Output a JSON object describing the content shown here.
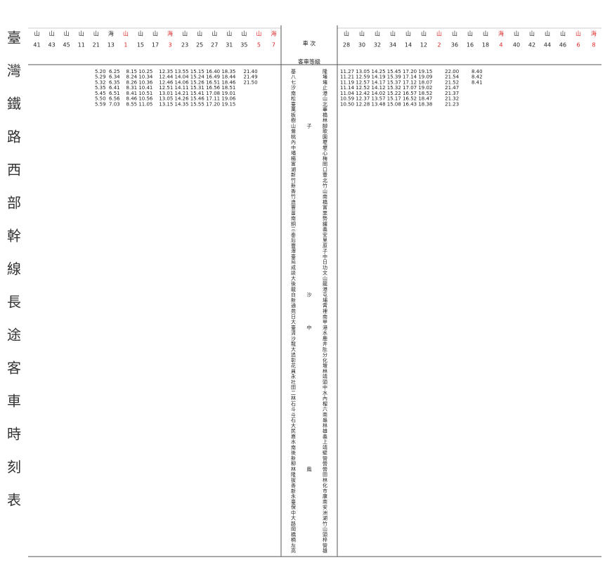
{
  "title": "臺灣鐵路西部幹線長途客車時刻表",
  "header": {
    "train_label": "車 次",
    "class_label": "客車等級",
    "left_trains": [
      {
        "no": "41",
        "line": "山"
      },
      {
        "no": "43",
        "line": "山"
      },
      {
        "no": "45",
        "line": "山"
      },
      {
        "no": "11",
        "line": "山"
      },
      {
        "no": "21",
        "line": "山"
      },
      {
        "no": "13",
        "line": "海"
      },
      {
        "no": "1",
        "line": "山",
        "red": true
      },
      {
        "no": "15",
        "line": "山"
      },
      {
        "no": "17",
        "line": "山"
      },
      {
        "no": "3",
        "line": "海",
        "red": true
      },
      {
        "no": "23",
        "line": "山"
      },
      {
        "no": "25",
        "line": "山"
      },
      {
        "no": "27",
        "line": "山"
      },
      {
        "no": "31",
        "line": "山"
      },
      {
        "no": "35",
        "line": "山"
      },
      {
        "no": "5",
        "line": "山",
        "red": true
      },
      {
        "no": "7",
        "line": "海",
        "red": true
      }
    ],
    "right_trains": [
      {
        "no": "28",
        "line": "山"
      },
      {
        "no": "30",
        "line": "山"
      },
      {
        "no": "32",
        "line": "山"
      },
      {
        "no": "34",
        "line": "山"
      },
      {
        "no": "14",
        "line": "山"
      },
      {
        "no": "12",
        "line": "山"
      },
      {
        "no": "2",
        "line": "山",
        "red": true
      },
      {
        "no": "36",
        "line": "山"
      },
      {
        "no": "16",
        "line": "山"
      },
      {
        "no": "18",
        "line": "山"
      },
      {
        "no": "4",
        "line": "海",
        "red": true
      },
      {
        "no": "40",
        "line": "山"
      },
      {
        "no": "42",
        "line": "山"
      },
      {
        "no": "44",
        "line": "山"
      },
      {
        "no": "46",
        "line": "山"
      },
      {
        "no": "6",
        "line": "山",
        "red": true
      },
      {
        "no": "8",
        "line": "海",
        "red": true
      }
    ]
  },
  "rows": [
    {
      "station": "基隆",
      "left": "5.20  6.25    8.15 10.25    12.35 13.55 15.15 16.40 18.35     21.40",
      "right": "11.27 13.05 14.25 15.45 17.20 19.15        22.00        8.40"
    },
    {
      "station": "八堵",
      "left": "5.29  6.34    8.24 10.34    12.44 14.04 15.24 16.49 18.44     21.49",
      "right": "11.21 12.59 14.19 15.39 17.14 19.09        21.54        8.42"
    },
    {
      "station": "七堵",
      "left": "5.32  6.35    8.26 10.36    12.46 14.06 15.26 16.51 18.46     21.50",
      "right": "11.19 12.57 14.17 15.37 17.12 18.07        21.52        8.41"
    },
    {
      "station": "汐止",
      "left": "5.35  6.41    8.31 10.41    12.51 14.11 15.31 16.56 18.51",
      "right": "11.14 12.52 14.12 15.32 17.07 19.02        21.47"
    },
    {
      "station": "南港",
      "left": "5.45  6.51    8.41 10.51    13.01 14.21 15.41 17.08 19.01",
      "right": "11.04 12.42 14.02 15.22 16.57 18.52        21.37"
    },
    {
      "station": "松山",
      "left": "5.50  6.56    8.46 10.56    13.05 14.26 15.46 17.11 19.06",
      "right": "10.59 12.37 13.57 15.17 16.52 18.47        21.32"
    },
    {
      "station": "臺北",
      "left": "5.59  7.03    8.55 11.05    13.15 14.35 15.55 17.20 19.15",
      "right": "10.50 12.28 13.48 15.08 16.43 18.38        21.23"
    },
    {
      "station": "萬華"
    },
    {
      "station": "板橋"
    },
    {
      "station": "樹林"
    },
    {
      "station": "山子腳"
    },
    {
      "station": "鶯歌"
    },
    {
      "station": "桃園"
    },
    {
      "station": "內壢"
    },
    {
      "station": "中壢"
    },
    {
      "station": "埔心"
    },
    {
      "station": "楊梅"
    },
    {
      "station": "富岡"
    },
    {
      "station": "湖口"
    },
    {
      "station": "新豐"
    },
    {
      "station": "竹北"
    },
    {
      "station": "新竹"
    },
    {
      "station": "香山"
    },
    {
      "station": "竹南"
    },
    {
      "station": "造橋"
    },
    {
      "station": "豐富"
    },
    {
      "station": "苗栗"
    },
    {
      "station": "南勢"
    },
    {
      "station": "銅鑼"
    },
    {
      "station": "三義"
    },
    {
      "station": "泰安"
    },
    {
      "station": "后里"
    },
    {
      "station": "豐原"
    },
    {
      "station": "潭子"
    },
    {
      "station": "臺中"
    },
    {
      "station": "烏日"
    },
    {
      "station": "成功"
    },
    {
      "station": "談文"
    },
    {
      "station": "大山"
    },
    {
      "station": "後龍"
    },
    {
      "station": "龍港"
    },
    {
      "station": "白沙屯"
    },
    {
      "station": "新埔"
    },
    {
      "station": "通霄"
    },
    {
      "station": "苑裡"
    },
    {
      "station": "日南"
    },
    {
      "station": "大甲"
    },
    {
      "station": "臺中港"
    },
    {
      "station": "清水"
    },
    {
      "station": "沙鹿"
    },
    {
      "station": "龍井"
    },
    {
      "station": "大肚"
    },
    {
      "station": "追分"
    },
    {
      "station": "彰化"
    },
    {
      "station": "花壇"
    },
    {
      "station": "員林"
    },
    {
      "station": "永靖"
    },
    {
      "station": "社頭"
    },
    {
      "station": "田中"
    },
    {
      "station": "二水"
    },
    {
      "station": "林內"
    },
    {
      "station": "石榴"
    },
    {
      "station": "斗六"
    },
    {
      "station": "斗南"
    },
    {
      "station": "石龜"
    },
    {
      "station": "大林"
    },
    {
      "station": "民雄"
    },
    {
      "station": "嘉義"
    },
    {
      "station": "水上"
    },
    {
      "station": "南靖"
    },
    {
      "station": "後壁"
    },
    {
      "station": "新營"
    },
    {
      "station": "柳營"
    },
    {
      "station": "林鳳營"
    },
    {
      "station": "隆田"
    },
    {
      "station": "拔林"
    },
    {
      "station": "善化"
    },
    {
      "station": "新市"
    },
    {
      "station": "永康"
    },
    {
      "station": "臺南"
    },
    {
      "station": "保安"
    },
    {
      "station": "中洲"
    },
    {
      "station": "大湖"
    },
    {
      "station": "路竹"
    },
    {
      "station": "岡山"
    },
    {
      "station": "橋頭"
    },
    {
      "station": "楠梓"
    },
    {
      "station": "左營"
    },
    {
      "station": "高雄"
    }
  ]
}
